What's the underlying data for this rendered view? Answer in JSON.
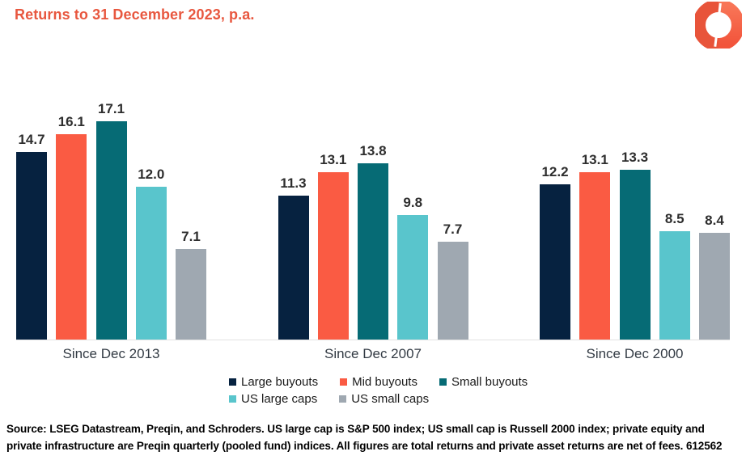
{
  "header": {
    "title": "Returns to 31 December 2023, p.a."
  },
  "logo": {
    "name": "schroders-logo",
    "color_dark": "#E8543A",
    "color_light": "#F87A5E"
  },
  "chart_data": {
    "type": "bar",
    "title": "Returns to 31 December 2023, p.a.",
    "categories": [
      "Since Dec 2013",
      "Since Dec 2007",
      "Since Dec 2000"
    ],
    "series": [
      {
        "name": "Large buyouts",
        "color": "#062240",
        "values": [
          14.7,
          11.3,
          12.2
        ]
      },
      {
        "name": "Mid buyouts",
        "color": "#FA5B43",
        "values": [
          16.1,
          13.1,
          13.1
        ]
      },
      {
        "name": "Small buyouts",
        "color": "#066B75",
        "values": [
          17.1,
          13.8,
          13.3
        ]
      },
      {
        "name": "US large caps",
        "color": "#59C5CC",
        "values": [
          12.0,
          9.8,
          8.5
        ]
      },
      {
        "name": "US small caps",
        "color": "#9FA8B1",
        "values": [
          7.1,
          7.7,
          8.4
        ]
      }
    ],
    "value_labels": "one_decimal",
    "xlabel": "",
    "ylabel": "",
    "ylim": [
      0,
      18
    ],
    "grid": false,
    "legend_position": "bottom",
    "legend_rows": [
      [
        0,
        1,
        2
      ],
      [
        3,
        4
      ]
    ]
  },
  "footer": {
    "source_text": "Source: LSEG Datastream, Preqin, and Schroders. US large cap is S&P 500 index; US small cap is Russell 2000 index; private equity and private infrastructure are Preqin quarterly (pooled fund) indices. All figures are total returns and private asset returns are net of fees. 612562"
  }
}
